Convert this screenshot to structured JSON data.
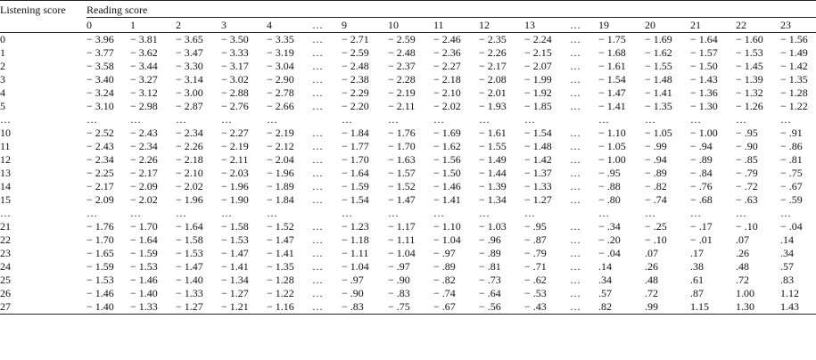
{
  "headers": {
    "listening": "Listening score",
    "reading": "Reading score"
  },
  "reading_cols": [
    "0",
    "1",
    "2",
    "3",
    "4",
    "…",
    "9",
    "10",
    "11",
    "12",
    "13",
    "…",
    "19",
    "20",
    "21",
    "22",
    "23"
  ],
  "rows": [
    {
      "label": "0",
      "cells": [
        "− 3.96",
        "− 3.81",
        "− 3.65",
        "− 3.50",
        "− 3.35",
        "…",
        "− 2.71",
        "− 2.59",
        "− 2.46",
        "− 2.35",
        "− 2.24",
        "…",
        "− 1.75",
        "− 1.69",
        "− 1.64",
        "− 1.60",
        "− 1.56"
      ]
    },
    {
      "label": "1",
      "cells": [
        "− 3.77",
        "− 3.62",
        "− 3.47",
        "− 3.33",
        "− 3.19",
        "…",
        "− 2.59",
        "− 2.48",
        "− 2.36",
        "− 2.26",
        "− 2.15",
        "…",
        "− 1.68",
        "− 1.62",
        "− 1.57",
        "− 1.53",
        "− 1.49"
      ]
    },
    {
      "label": "2",
      "cells": [
        "− 3.58",
        "− 3.44",
        "− 3.30",
        "− 3.17",
        "− 3.04",
        "…",
        "− 2.48",
        "− 2.37",
        "− 2.27",
        "− 2.17",
        "− 2.07",
        "…",
        "− 1.61",
        "− 1.55",
        "− 1.50",
        "− 1.45",
        "− 1.42"
      ]
    },
    {
      "label": "3",
      "cells": [
        "− 3.40",
        "− 3.27",
        "− 3.14",
        "− 3.02",
        "− 2.90",
        "…",
        "− 2.38",
        "− 2.28",
        "− 2.18",
        "− 2.08",
        "− 1.99",
        "…",
        "− 1.54",
        "− 1.48",
        "− 1.43",
        "− 1.39",
        "− 1.35"
      ]
    },
    {
      "label": "4",
      "cells": [
        "− 3.24",
        "− 3.12",
        "− 3.00",
        "− 2.88",
        "− 2.78",
        "…",
        "− 2.29",
        "− 2.19",
        "− 2.10",
        "− 2.01",
        "− 1.92",
        "…",
        "− 1.47",
        "− 1.41",
        "− 1.36",
        "− 1.32",
        "− 1.28"
      ]
    },
    {
      "label": "5",
      "cells": [
        "− 3.10",
        "− 2.98",
        "− 2.87",
        "− 2.76",
        "− 2.66",
        "…",
        "− 2.20",
        "− 2.11",
        "− 2.02",
        "− 1.93",
        "− 1.85",
        "…",
        "− 1.41",
        "− 1.35",
        "− 1.30",
        "− 1.26",
        "− 1.22"
      ]
    },
    {
      "label": "…",
      "cells": [
        "…",
        "…",
        "…",
        "…",
        "…",
        "",
        "…",
        "…",
        "…",
        "…",
        "…",
        "",
        "…",
        "…",
        "…",
        "…",
        "…"
      ]
    },
    {
      "label": "10",
      "cells": [
        "− 2.52",
        "− 2.43",
        "− 2.34",
        "− 2.27",
        "− 2.19",
        "…",
        "− 1.84",
        "− 1.76",
        "− 1.69",
        "− 1.61",
        "− 1.54",
        "…",
        "− 1.10",
        "− 1.05",
        "− 1.00",
        "− .95",
        "− .91"
      ]
    },
    {
      "label": "11",
      "cells": [
        "− 2.43",
        "− 2.34",
        "− 2.26",
        "− 2.19",
        "− 2.12",
        "…",
        "− 1.77",
        "− 1.70",
        "− 1.62",
        "− 1.55",
        "− 1.48",
        "…",
        "− 1.05",
        "− .99",
        "− .94",
        "− .90",
        "− .86"
      ]
    },
    {
      "label": "12",
      "cells": [
        "− 2.34",
        "− 2.26",
        "− 2.18",
        "− 2.11",
        "− 2.04",
        "…",
        "− 1.70",
        "− 1.63",
        "− 1.56",
        "− 1.49",
        "− 1.42",
        "…",
        "− 1.00",
        "− .94",
        "− .89",
        "− .85",
        "− .81"
      ]
    },
    {
      "label": "13",
      "cells": [
        "− 2.25",
        "− 2.17",
        "− 2.10",
        "− 2.03",
        "− 1.96",
        "…",
        "− 1.64",
        "− 1.57",
        "− 1.50",
        "− 1.44",
        "− 1.37",
        "…",
        "− .95",
        "− .89",
        "− .84",
        "− .79",
        "− .75"
      ]
    },
    {
      "label": "14",
      "cells": [
        "− 2.17",
        "− 2.09",
        "− 2.02",
        "− 1.96",
        "− 1.89",
        "…",
        "− 1.59",
        "− 1.52",
        "− 1.46",
        "− 1.39",
        "− 1.33",
        "…",
        "− .88",
        "− .82",
        "− .76",
        "− .72",
        "− .67"
      ]
    },
    {
      "label": "15",
      "cells": [
        "− 2.09",
        "− 2.02",
        "− 1.96",
        "− 1.90",
        "− 1.84",
        "…",
        "− 1.54",
        "− 1.47",
        "− 1.41",
        "− 1.34",
        "− 1.27",
        "…",
        "− .80",
        "− .74",
        "− .68",
        "− .63",
        "− .59"
      ]
    },
    {
      "label": "…",
      "cells": [
        "…",
        "…",
        "…",
        "…",
        "…",
        "",
        "…",
        "…",
        "…",
        "…",
        "…",
        "",
        "…",
        "…",
        "…",
        "…",
        "…"
      ]
    },
    {
      "label": "21",
      "cells": [
        "− 1.76",
        "− 1.70",
        "− 1.64",
        "− 1.58",
        "− 1.52",
        "…",
        "− 1.23",
        "− 1.17",
        "− 1.10",
        "− 1.03",
        "− .95",
        "…",
        "− .34",
        "− .25",
        "− .17",
        "− .10",
        "− .04"
      ]
    },
    {
      "label": "22",
      "cells": [
        "− 1.70",
        "− 1.64",
        "− 1.58",
        "− 1.53",
        "− 1.47",
        "…",
        "− 1.18",
        "− 1.11",
        "− 1.04",
        "− .96",
        "− .87",
        "…",
        "− .20",
        "− .10",
        "− .01",
        ".07",
        ".14"
      ]
    },
    {
      "label": "23",
      "cells": [
        "− 1.65",
        "− 1.59",
        "− 1.53",
        "− 1.47",
        "− 1.41",
        "…",
        "− 1.11",
        "− 1.04",
        "− .97",
        "− .89",
        "− .79",
        "…",
        "− .04",
        ".07",
        ".17",
        ".26",
        ".34"
      ]
    },
    {
      "label": "24",
      "cells": [
        "− 1.59",
        "− 1.53",
        "− 1.47",
        "− 1.41",
        "− 1.35",
        "…",
        "− 1.04",
        "− .97",
        "− .89",
        "− .81",
        "− .71",
        "…",
        ".14",
        ".26",
        ".38",
        ".48",
        ".57"
      ]
    },
    {
      "label": "25",
      "cells": [
        "− 1.53",
        "− 1.46",
        "− 1.40",
        "− 1.34",
        "− 1.28",
        "…",
        "− .97",
        "− .90",
        "− .82",
        "− .73",
        "− .62",
        "…",
        ".34",
        ".48",
        ".61",
        ".72",
        ".83"
      ]
    },
    {
      "label": "26",
      "cells": [
        "− 1.46",
        "− 1.40",
        "− 1.33",
        "− 1.27",
        "− 1.22",
        "…",
        "− .90",
        "− .83",
        "− .74",
        "− .64",
        "− .53",
        "…",
        ".57",
        ".72",
        ".87",
        "1.00",
        "1.12"
      ]
    },
    {
      "label": "27",
      "cells": [
        "− 1.40",
        "− 1.33",
        "− 1.27",
        "− 1.21",
        "− 1.16",
        "…",
        "− .83",
        "− .75",
        "− .67",
        "− .56",
        "− .43",
        "…",
        ".82",
        ".99",
        "1.15",
        "1.30",
        "1.43"
      ]
    }
  ]
}
